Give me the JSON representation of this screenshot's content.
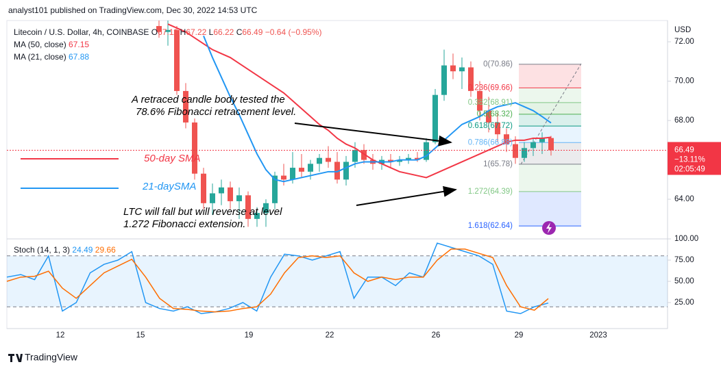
{
  "header": {
    "publisher": "analyst101 published on TradingView.com, Dec 30, 2022 14:53 UTC",
    "symbol": "Litecoin / U.S. Dollar, 4h, COINBASE",
    "ohlc_labels": [
      "O",
      "H",
      "L",
      "C"
    ],
    "change": "−0.64 (−0.95%)",
    "currency": "USD"
  },
  "chart_data": [
    {
      "type": "candlestick",
      "ohlc": {
        "open": [
          72.8,
          72.5,
          72.6,
          69.5,
          67.9,
          65.3,
          63.8,
          64.3,
          64.6,
          63.9,
          64.2,
          63.0,
          63.3,
          63.8,
          65.2,
          65.0,
          65.6,
          65.4,
          65.8,
          66.1,
          65.9,
          65.0,
          65.9,
          66.5,
          66.0,
          65.8,
          66.0,
          65.9,
          66.0,
          66.1,
          66.0,
          66.9,
          69.3,
          70.8,
          70.5,
          70.7,
          69.5,
          68.5,
          67.9,
          67.3,
          66.8,
          66.1,
          66.6,
          66.9,
          67.11
        ],
        "high": [
          73.2,
          73.1,
          72.8,
          69.9,
          68.1,
          65.6,
          64.8,
          65.0,
          64.9,
          64.6,
          64.4,
          63.6,
          64.0,
          65.4,
          65.8,
          66.4,
          66.3,
          66.0,
          66.3,
          66.7,
          66.4,
          66.2,
          66.9,
          66.8,
          66.3,
          66.2,
          66.3,
          66.2,
          66.3,
          66.4,
          67.1,
          69.6,
          71.6,
          71.4,
          71.2,
          71.0,
          70.0,
          69.2,
          68.4,
          67.6,
          67.2,
          66.9,
          67.1,
          67.4,
          67.22
        ],
        "low": [
          72.2,
          71.8,
          69.3,
          67.6,
          65.0,
          63.5,
          63.2,
          63.7,
          63.5,
          63.0,
          62.6,
          62.6,
          62.6,
          63.5,
          64.7,
          64.8,
          65.1,
          65.0,
          65.4,
          65.6,
          64.8,
          64.7,
          65.6,
          65.8,
          65.5,
          65.5,
          65.6,
          65.7,
          65.8,
          65.9,
          65.9,
          66.8,
          69.0,
          70.1,
          69.6,
          69.2,
          68.0,
          67.4,
          66.9,
          66.4,
          65.8,
          65.9,
          66.2,
          66.3,
          66.22
        ],
        "close": [
          72.5,
          72.6,
          69.5,
          67.9,
          65.3,
          63.8,
          64.3,
          64.6,
          63.9,
          64.2,
          63.0,
          63.3,
          63.8,
          65.2,
          65.0,
          65.6,
          65.4,
          65.8,
          66.1,
          65.9,
          65.0,
          65.9,
          66.5,
          66.0,
          65.8,
          66.0,
          65.9,
          66.0,
          66.1,
          66.0,
          66.9,
          69.3,
          70.8,
          70.5,
          70.7,
          69.5,
          68.5,
          67.9,
          67.3,
          66.8,
          66.1,
          66.6,
          66.9,
          67.1,
          66.49
        ],
        "up_color": "#26a69a",
        "down_color": "#ef5350"
      },
      "series": [
        {
          "name": "MA (50, close)",
          "color": "#f23645",
          "values": [
            null,
            72.9,
            72.7,
            72.5,
            72.2,
            71.9,
            71.6,
            71.4,
            71.2,
            70.9,
            70.6,
            70.3,
            70.0,
            69.7,
            69.4,
            69.0,
            68.6,
            68.2,
            67.8,
            67.5,
            67.1,
            66.8,
            66.6,
            66.3,
            66.0,
            65.8,
            65.6,
            65.4,
            65.3,
            65.2,
            65.1,
            65.3,
            65.5,
            65.7,
            65.9,
            66.1,
            66.3,
            66.5,
            66.7,
            66.9,
            67.0,
            67.0,
            67.1,
            67.1,
            67.15
          ]
        },
        {
          "name": "MA (21, close)",
          "color": "#2196f3",
          "values": [
            null,
            null,
            null,
            null,
            null,
            72.3,
            71.2,
            70.2,
            69.2,
            68.3,
            67.3,
            66.3,
            65.5,
            65.0,
            64.9,
            65.0,
            65.1,
            65.2,
            65.3,
            65.4,
            65.4,
            65.6,
            65.8,
            65.9,
            65.9,
            65.9,
            65.9,
            66.0,
            66.0,
            66.0,
            66.2,
            66.6,
            67.0,
            67.4,
            67.8,
            68.0,
            68.2,
            68.5,
            68.7,
            68.8,
            68.9,
            68.7,
            68.5,
            68.2,
            67.88
          ]
        }
      ],
      "ylim": [
        62.02,
        73.08
      ],
      "yticks": [
        {
          "value": 64,
          "label": "64.00"
        },
        {
          "value": 68,
          "label": "68.00"
        },
        {
          "value": 70,
          "label": "70.00"
        },
        {
          "value": 72,
          "label": "72.00"
        }
      ],
      "x_labels": [
        "12",
        "15",
        "19",
        "22",
        "26",
        "29",
        "2023"
      ],
      "price_tag": {
        "change": "−13.11%",
        "countdown": "02:05:49",
        "color": "#f23645"
      },
      "fib_levels": [
        {
          "value": 70.86,
          "label": "0(70.86)",
          "color": "#787b86"
        },
        {
          "value": 69.66,
          "label": "0.236(69.66)",
          "color": "#f23645"
        },
        {
          "value": 68.91,
          "label": "0.382(68.91)",
          "color": "#81c784"
        },
        {
          "value": 68.32,
          "label": "0.5(68.32)",
          "color": "#4caf50"
        },
        {
          "value": 67.72,
          "label": "0.618(67.72)",
          "color": "#089981"
        },
        {
          "value": 66.88,
          "label": "0.786(66.88)",
          "color": "#64b5f6"
        },
        {
          "value": 65.78,
          "label": "1(65.78)",
          "color": "#787b86"
        },
        {
          "value": 64.39,
          "label": "1.272(64.39)",
          "color": "#81c784"
        },
        {
          "value": 62.64,
          "label": "1.618(62.64)",
          "color": "#2962ff"
        }
      ],
      "annotations": [
        "A retraced candle body tested the",
        "78.6% Fibonacci retracement level.",
        "50-day SMA",
        "21-daySMA",
        "LTC  will fall but will reverse at level",
        "1.272 Fibonacci extension."
      ]
    },
    {
      "type": "line",
      "title": "Stoch (14, 1, 3)",
      "series": [
        {
          "name": "%K",
          "color": "#2196f3",
          "values": [
            55,
            58,
            52,
            80,
            15,
            25,
            60,
            70,
            75,
            85,
            25,
            18,
            15,
            20,
            12,
            14,
            18,
            25,
            15,
            55,
            82,
            80,
            75,
            80,
            85,
            30,
            55,
            55,
            45,
            60,
            55,
            95,
            90,
            85,
            80,
            70,
            15,
            12,
            20,
            24.49
          ]
        },
        {
          "name": "%D",
          "color": "#ff6d00",
          "values": [
            50,
            55,
            56,
            62,
            42,
            30,
            45,
            60,
            68,
            76,
            55,
            30,
            18,
            17,
            15,
            14,
            15,
            18,
            20,
            35,
            60,
            78,
            80,
            78,
            80,
            60,
            50,
            55,
            52,
            55,
            55,
            75,
            88,
            88,
            83,
            78,
            45,
            20,
            16,
            29.66
          ]
        }
      ],
      "ylim": [
        -4,
        100
      ],
      "yticks": [
        {
          "value": 25,
          "label": "25.00"
        },
        {
          "value": 50,
          "label": "50.00"
        },
        {
          "value": 75,
          "label": "75.00"
        },
        {
          "value": 100,
          "label": "100.00"
        }
      ],
      "band": [
        20,
        80
      ]
    }
  ],
  "footer": "TradingView"
}
